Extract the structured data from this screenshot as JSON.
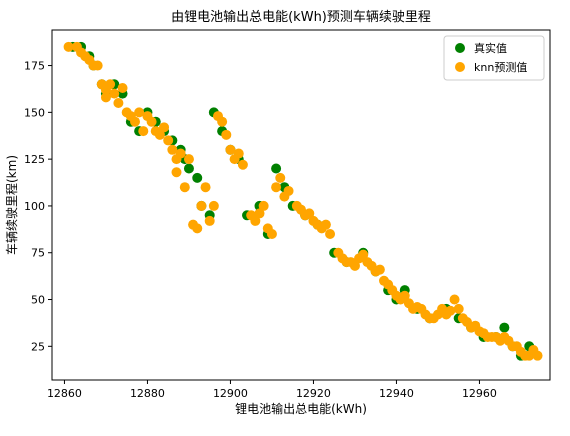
{
  "chart_data": {
    "type": "scatter",
    "title": "由锂电池输出总电能(kWh)预测车辆续驶里程",
    "xlabel": "锂电池输出总电能(kWh)",
    "ylabel": "车辆续驶里程(km)",
    "xlim": [
      12857,
      12977
    ],
    "ylim": [
      7,
      194
    ],
    "xticks": [
      12860,
      12880,
      12900,
      12920,
      12940,
      12960
    ],
    "yticks": [
      25,
      50,
      75,
      100,
      125,
      150,
      175
    ],
    "grid": false,
    "legend": "top-right",
    "series": [
      {
        "name": "真实值",
        "color": "#008000",
        "points": [
          [
            12862,
            185
          ],
          [
            12864,
            185
          ],
          [
            12866,
            180
          ],
          [
            12867,
            175
          ],
          [
            12869,
            165
          ],
          [
            12870,
            160
          ],
          [
            12872,
            165
          ],
          [
            12874,
            160
          ],
          [
            12876,
            145
          ],
          [
            12878,
            140
          ],
          [
            12880,
            150
          ],
          [
            12882,
            145
          ],
          [
            12884,
            140
          ],
          [
            12886,
            135
          ],
          [
            12888,
            130
          ],
          [
            12889,
            125
          ],
          [
            12890,
            120
          ],
          [
            12892,
            115
          ],
          [
            12893,
            100
          ],
          [
            12895,
            95
          ],
          [
            12896,
            150
          ],
          [
            12898,
            140
          ],
          [
            12900,
            130
          ],
          [
            12902,
            125
          ],
          [
            12904,
            95
          ],
          [
            12907,
            100
          ],
          [
            12909,
            85
          ],
          [
            12911,
            120
          ],
          [
            12913,
            110
          ],
          [
            12915,
            100
          ],
          [
            12918,
            95
          ],
          [
            12921,
            90
          ],
          [
            12925,
            75
          ],
          [
            12928,
            70
          ],
          [
            12932,
            75
          ],
          [
            12935,
            65
          ],
          [
            12938,
            55
          ],
          [
            12940,
            50
          ],
          [
            12942,
            55
          ],
          [
            12945,
            45
          ],
          [
            12948,
            40
          ],
          [
            12952,
            45
          ],
          [
            12955,
            40
          ],
          [
            12958,
            35
          ],
          [
            12961,
            30
          ],
          [
            12964,
            30
          ],
          [
            12966,
            35
          ],
          [
            12968,
            25
          ],
          [
            12970,
            20
          ],
          [
            12972,
            25
          ]
        ]
      },
      {
        "name": "knn预测值",
        "color": "#ffa500",
        "points": [
          [
            12861,
            185
          ],
          [
            12863,
            185
          ],
          [
            12864,
            182
          ],
          [
            12865,
            180
          ],
          [
            12866,
            178
          ],
          [
            12867,
            175
          ],
          [
            12868,
            175
          ],
          [
            12869,
            165
          ],
          [
            12870,
            162
          ],
          [
            12870,
            158
          ],
          [
            12871,
            165
          ],
          [
            12872,
            160
          ],
          [
            12873,
            155
          ],
          [
            12874,
            163
          ],
          [
            12875,
            150
          ],
          [
            12876,
            148
          ],
          [
            12877,
            145
          ],
          [
            12878,
            150
          ],
          [
            12879,
            140
          ],
          [
            12880,
            148
          ],
          [
            12881,
            145
          ],
          [
            12882,
            140
          ],
          [
            12883,
            138
          ],
          [
            12884,
            142
          ],
          [
            12885,
            135
          ],
          [
            12886,
            130
          ],
          [
            12887,
            125
          ],
          [
            12888,
            128
          ],
          [
            12887,
            118
          ],
          [
            12889,
            110
          ],
          [
            12890,
            125
          ],
          [
            12891,
            90
          ],
          [
            12892,
            88
          ],
          [
            12893,
            100
          ],
          [
            12894,
            110
          ],
          [
            12895,
            92
          ],
          [
            12896,
            100
          ],
          [
            12897,
            148
          ],
          [
            12898,
            145
          ],
          [
            12899,
            138
          ],
          [
            12900,
            130
          ],
          [
            12901,
            125
          ],
          [
            12902,
            128
          ],
          [
            12903,
            122
          ],
          [
            12905,
            95
          ],
          [
            12906,
            92
          ],
          [
            12907,
            96
          ],
          [
            12908,
            100
          ],
          [
            12909,
            88
          ],
          [
            12910,
            85
          ],
          [
            12911,
            110
          ],
          [
            12912,
            115
          ],
          [
            12913,
            105
          ],
          [
            12914,
            108
          ],
          [
            12916,
            100
          ],
          [
            12917,
            98
          ],
          [
            12918,
            95
          ],
          [
            12919,
            96
          ],
          [
            12920,
            92
          ],
          [
            12921,
            90
          ],
          [
            12922,
            88
          ],
          [
            12923,
            90
          ],
          [
            12924,
            85
          ],
          [
            12926,
            75
          ],
          [
            12927,
            72
          ],
          [
            12928,
            70
          ],
          [
            12929,
            70
          ],
          [
            12930,
            68
          ],
          [
            12931,
            72
          ],
          [
            12932,
            74
          ],
          [
            12933,
            70
          ],
          [
            12934,
            68
          ],
          [
            12935,
            65
          ],
          [
            12936,
            66
          ],
          [
            12937,
            60
          ],
          [
            12938,
            58
          ],
          [
            12939,
            55
          ],
          [
            12940,
            52
          ],
          [
            12941,
            50
          ],
          [
            12942,
            52
          ],
          [
            12943,
            48
          ],
          [
            12944,
            45
          ],
          [
            12945,
            46
          ],
          [
            12946,
            45
          ],
          [
            12947,
            42
          ],
          [
            12948,
            40
          ],
          [
            12949,
            40
          ],
          [
            12950,
            42
          ],
          [
            12951,
            45
          ],
          [
            12952,
            42
          ],
          [
            12953,
            44
          ],
          [
            12954,
            50
          ],
          [
            12955,
            45
          ],
          [
            12956,
            40
          ],
          [
            12957,
            38
          ],
          [
            12958,
            35
          ],
          [
            12959,
            36
          ],
          [
            12960,
            33
          ],
          [
            12961,
            32
          ],
          [
            12962,
            30
          ],
          [
            12963,
            30
          ],
          [
            12964,
            30
          ],
          [
            12965,
            28
          ],
          [
            12966,
            30
          ],
          [
            12967,
            28
          ],
          [
            12968,
            25
          ],
          [
            12969,
            25
          ],
          [
            12970,
            22
          ],
          [
            12971,
            20
          ],
          [
            12972,
            20
          ],
          [
            12973,
            23
          ],
          [
            12974,
            20
          ]
        ]
      }
    ]
  }
}
